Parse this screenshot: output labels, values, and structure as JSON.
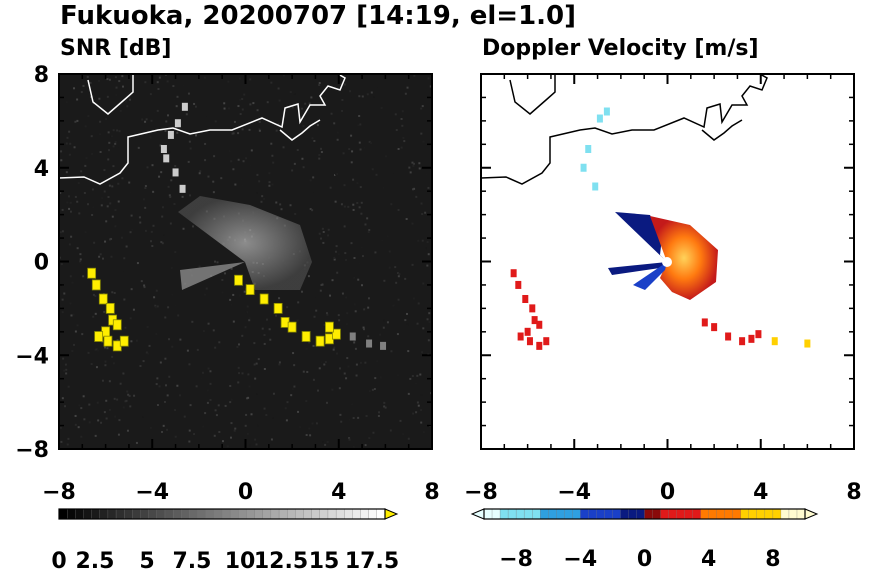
{
  "title": "Fukuoka, 20200707 [14:19, el=1.0]",
  "chart_data": [
    {
      "type": "heatmap",
      "title": "SNR [dB]",
      "xlim": [
        -8,
        8
      ],
      "ylim": [
        -8,
        8
      ],
      "x_ticks": [
        -8,
        -4,
        0,
        4,
        8
      ],
      "y_ticks": [
        8,
        4,
        0,
        -4,
        -8
      ],
      "x_tick_labels": [
        "−8",
        "−4",
        "0",
        "4",
        "8"
      ],
      "y_tick_labels": [
        "8",
        "4",
        "0",
        "−4",
        "−8"
      ],
      "background_color": "#1a1a1a",
      "colorbar": {
        "min": 0,
        "max": 20,
        "step": 0.5,
        "extend": "max",
        "tick_labels": [
          "0",
          "2.5",
          "5",
          "7.5",
          "10",
          "12.5",
          "15",
          "17.5"
        ],
        "colors_low_to_high": [
          "#000000",
          "#ffffff"
        ],
        "over_color": "#ffee00"
      },
      "echoes": [
        {
          "name": "strong-echo-band-sw",
          "level": "over",
          "points": [
            [
              -6.6,
              -0.5
            ],
            [
              -6.4,
              -1.0
            ],
            [
              -6.1,
              -1.6
            ],
            [
              -5.8,
              -2.0
            ],
            [
              -5.7,
              -2.5
            ],
            [
              -5.5,
              -2.7
            ],
            [
              -6.0,
              -3.0
            ],
            [
              -6.3,
              -3.2
            ],
            [
              -5.9,
              -3.4
            ],
            [
              -5.5,
              -3.6
            ],
            [
              -5.2,
              -3.4
            ]
          ]
        },
        {
          "name": "strong-echo-band-se",
          "level": "over",
          "points": [
            [
              -0.3,
              -0.8
            ],
            [
              0.2,
              -1.2
            ],
            [
              0.8,
              -1.6
            ],
            [
              1.4,
              -2.0
            ],
            [
              1.7,
              -2.6
            ],
            [
              2.0,
              -2.8
            ],
            [
              2.6,
              -3.2
            ],
            [
              3.2,
              -3.4
            ],
            [
              3.6,
              -3.3
            ],
            [
              3.9,
              -3.1
            ],
            [
              3.6,
              -2.8
            ]
          ]
        },
        {
          "name": "weak-echo-arc-north",
          "level": 16,
          "points": [
            [
              -2.7,
              3.1
            ],
            [
              -3.0,
              3.8
            ],
            [
              -3.4,
              4.4
            ],
            [
              -3.5,
              4.8
            ],
            [
              -3.2,
              5.4
            ],
            [
              -2.9,
              5.9
            ],
            [
              -2.6,
              6.6
            ]
          ]
        },
        {
          "name": "weak-echo-patch-east",
          "level": 10,
          "points": [
            [
              4.6,
              -3.2
            ],
            [
              5.3,
              -3.5
            ],
            [
              5.9,
              -3.6
            ]
          ]
        }
      ],
      "coastline_color": "#ffffff"
    },
    {
      "type": "heatmap",
      "title": "Doppler Velocity [m/s]",
      "xlim": [
        -8,
        8
      ],
      "ylim": [
        -8,
        8
      ],
      "x_ticks": [
        -8,
        -4,
        0,
        4,
        8
      ],
      "y_ticks": [
        8,
        4,
        0,
        -4,
        -8
      ],
      "x_tick_labels": [
        "−8",
        "−4",
        "0",
        "4",
        "8"
      ],
      "y_tick_labels": [
        "8",
        "4",
        "0",
        "−4",
        "−8"
      ],
      "background_color": "#ffffff",
      "colorbar": {
        "min": -10,
        "max": 10,
        "step": 0.5,
        "extend": "both",
        "tick_values": [
          -8,
          -4,
          0,
          4,
          8
        ],
        "tick_labels": [
          "−8",
          "−4",
          "0",
          "4",
          "8"
        ],
        "negative_colors": [
          "#e6ffff",
          "#7fe0f0",
          "#2f9fe0",
          "#1a40c8",
          "#0a1a80"
        ],
        "positive_colors": [
          "#8a0a0a",
          "#e01a1a",
          "#ff7a00",
          "#ffd000",
          "#fffbd0"
        ]
      },
      "echoes": [
        {
          "name": "velocity-band-sw",
          "velocity": 1.5,
          "points": [
            [
              -6.6,
              -0.5
            ],
            [
              -6.4,
              -1.0
            ],
            [
              -6.1,
              -1.6
            ],
            [
              -5.8,
              -2.0
            ],
            [
              -5.7,
              -2.5
            ],
            [
              -5.5,
              -2.7
            ],
            [
              -6.0,
              -3.0
            ],
            [
              -6.3,
              -3.2
            ],
            [
              -5.9,
              -3.4
            ],
            [
              -5.5,
              -3.6
            ],
            [
              -5.2,
              -3.4
            ]
          ]
        },
        {
          "name": "velocity-band-se",
          "velocity": 1.8,
          "points": [
            [
              1.6,
              -2.6
            ],
            [
              2.0,
              -2.8
            ],
            [
              2.6,
              -3.2
            ],
            [
              3.2,
              -3.4
            ],
            [
              3.6,
              -3.3
            ],
            [
              3.9,
              -3.1
            ]
          ]
        },
        {
          "name": "velocity-patch-north",
          "velocity": -8.5,
          "points": [
            [
              -3.6,
              4.0
            ],
            [
              -3.4,
              4.8
            ],
            [
              -2.9,
              6.1
            ],
            [
              -2.6,
              6.4
            ],
            [
              -3.1,
              3.2
            ]
          ]
        },
        {
          "name": "velocity-patch-east",
          "velocity": 6.5,
          "points": [
            [
              4.6,
              -3.4
            ],
            [
              6.0,
              -3.5
            ]
          ]
        }
      ],
      "coastline_color": "#000000"
    }
  ]
}
